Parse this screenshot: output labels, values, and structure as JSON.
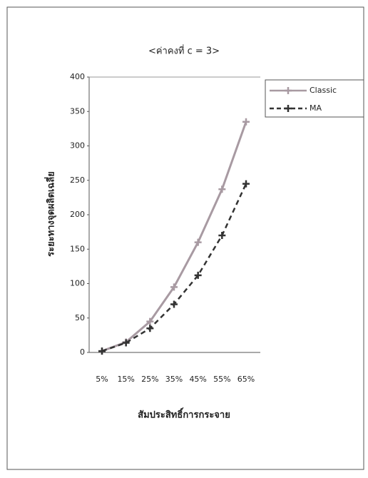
{
  "chart_data": {
    "type": "line",
    "title": "<ค่าคงที่ c = 3>",
    "y_label": "ระยะทางจุดผลิตเฉลี่ย",
    "x_label": "สัมประสิทธิ์การกระจาย",
    "categories": [
      "5%",
      "15%",
      "25%",
      "35%",
      "45%",
      "55%",
      "65%"
    ],
    "series": [
      {
        "name": "Classic",
        "color": "#a89aa2",
        "dash": false,
        "values": [
          2,
          15,
          45,
          95,
          160,
          237,
          335
        ]
      },
      {
        "name": "MA",
        "color": "#333333",
        "dash": true,
        "values": [
          2,
          14,
          35,
          70,
          112,
          170,
          245
        ]
      }
    ],
    "ylim": [
      0,
      400
    ],
    "yticks": [
      0,
      50,
      100,
      150,
      200,
      250,
      300,
      350,
      400
    ],
    "grid": false,
    "legend": "right"
  }
}
